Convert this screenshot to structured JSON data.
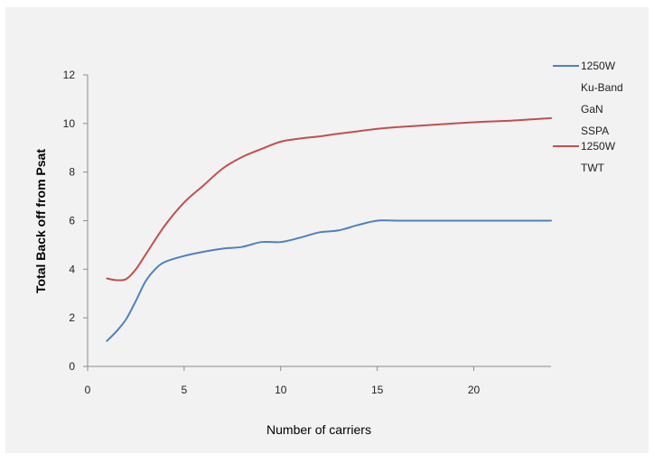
{
  "chart_data": {
    "type": "line",
    "title": "",
    "xlabel": "Number of carriers",
    "ylabel": "Total Back off from Psat",
    "xlim": [
      0,
      24
    ],
    "ylim": [
      0,
      12
    ],
    "x_ticks": [
      0,
      5,
      10,
      15,
      20
    ],
    "y_ticks": [
      0,
      2,
      4,
      6,
      8,
      10,
      12
    ],
    "grid": false,
    "legend_position": "right",
    "series": [
      {
        "name_lines": [
          "1250W",
          "Ku-Band",
          "GaN",
          "SSPA"
        ],
        "color": "#4f81bd",
        "points": [
          [
            1,
            1.05
          ],
          [
            1.5,
            1.45
          ],
          [
            2,
            1.95
          ],
          [
            2.5,
            2.7
          ],
          [
            3,
            3.5
          ],
          [
            3.5,
            4.0
          ],
          [
            4,
            4.3
          ],
          [
            5,
            4.55
          ],
          [
            6,
            4.72
          ],
          [
            7,
            4.85
          ],
          [
            8,
            4.92
          ],
          [
            9,
            5.12
          ],
          [
            10,
            5.12
          ],
          [
            11,
            5.3
          ],
          [
            12,
            5.52
          ],
          [
            13,
            5.6
          ],
          [
            14,
            5.82
          ],
          [
            15,
            6.0
          ],
          [
            16,
            6.0
          ],
          [
            18,
            6.0
          ],
          [
            20,
            6.0
          ],
          [
            22,
            6.0
          ],
          [
            24,
            6.0
          ]
        ]
      },
      {
        "name_lines": [
          "1250W",
          "TWT"
        ],
        "color": "#c0504d",
        "points": [
          [
            1,
            3.62
          ],
          [
            1.5,
            3.55
          ],
          [
            2,
            3.6
          ],
          [
            2.5,
            4.0
          ],
          [
            3,
            4.6
          ],
          [
            4,
            5.8
          ],
          [
            5,
            6.75
          ],
          [
            6,
            7.45
          ],
          [
            7,
            8.15
          ],
          [
            8,
            8.62
          ],
          [
            9,
            8.95
          ],
          [
            10,
            9.25
          ],
          [
            11,
            9.38
          ],
          [
            12,
            9.47
          ],
          [
            13,
            9.58
          ],
          [
            14,
            9.68
          ],
          [
            15,
            9.78
          ],
          [
            16,
            9.85
          ],
          [
            18,
            9.95
          ],
          [
            20,
            10.05
          ],
          [
            22,
            10.12
          ],
          [
            24,
            10.22
          ]
        ]
      }
    ]
  }
}
